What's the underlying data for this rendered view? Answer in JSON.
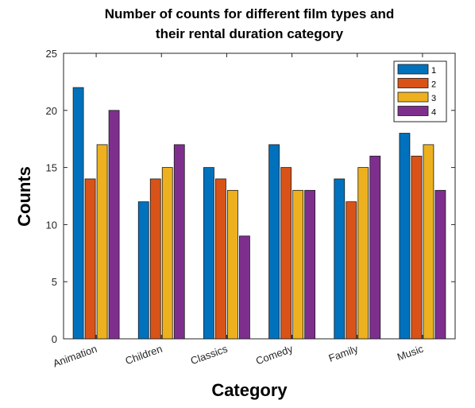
{
  "chart_data": {
    "type": "bar",
    "title": [
      "Number of counts for different film types and",
      "their rental duration category"
    ],
    "xlabel": "Category",
    "ylabel": "Counts",
    "categories": [
      "Animation",
      "Children",
      "Classics",
      "Comedy",
      "Family",
      "Music"
    ],
    "ylim": [
      0,
      25
    ],
    "yticks": [
      0,
      5,
      10,
      15,
      20,
      25
    ],
    "legend_position": "top-right",
    "grid": false,
    "series": [
      {
        "name": "1",
        "color": "#0072BD",
        "values": [
          22,
          12,
          15,
          17,
          14,
          18
        ]
      },
      {
        "name": "2",
        "color": "#D95319",
        "values": [
          14,
          14,
          14,
          15,
          12,
          16
        ]
      },
      {
        "name": "3",
        "color": "#EDB120",
        "values": [
          17,
          15,
          13,
          13,
          15,
          17
        ]
      },
      {
        "name": "4",
        "color": "#7E2F8E",
        "values": [
          20,
          17,
          9,
          13,
          16,
          13
        ]
      }
    ]
  }
}
